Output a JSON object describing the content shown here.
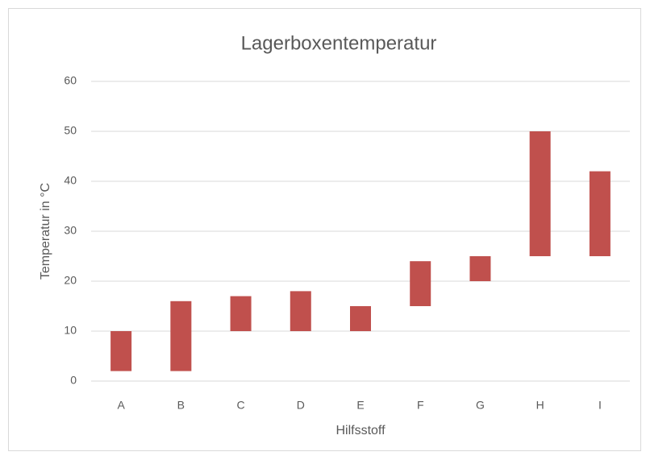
{
  "chart_data": {
    "type": "range-bar",
    "title": "Lagerboxentemperatur",
    "x_label": "Hilfsstoff",
    "y_label": "Temperatur in °C",
    "categories": [
      "A",
      "B",
      "C",
      "D",
      "E",
      "F",
      "G",
      "H",
      "I"
    ],
    "low": [
      2,
      2,
      10,
      10,
      10,
      15,
      20,
      25,
      25
    ],
    "high": [
      10,
      16,
      17,
      18,
      15,
      24,
      25,
      50,
      42
    ],
    "color": "#c0504d",
    "ylim": [
      0,
      60
    ],
    "yticks": [
      0,
      10,
      20,
      30,
      40,
      50,
      60
    ],
    "grid": true
  }
}
